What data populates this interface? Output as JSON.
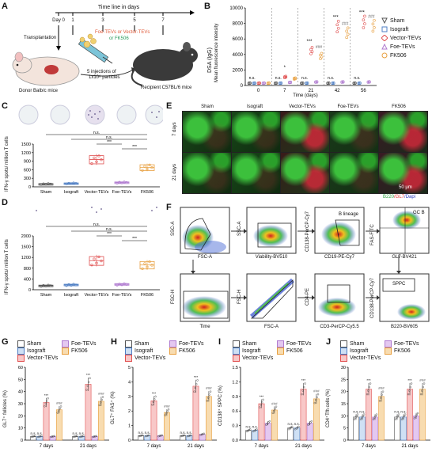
{
  "panels": {
    "A": "A",
    "B": "B",
    "C": "C",
    "D": "D",
    "E": "E",
    "F": "F",
    "G": "G",
    "H": "H",
    "I": "I",
    "J": "J"
  },
  "panelA": {
    "timeline_title": "Time line in days",
    "ticks": [
      "Day 0",
      "1",
      "3",
      "5",
      "7"
    ],
    "transplantation": "Transplantation",
    "treatment": "Foe-TEVs or Vector-TEVs",
    "treatment2": "or FK506",
    "injections": "5 injections of",
    "injections2": "1x10⁸ particles",
    "donor": "Donor Balb/c mice",
    "recipient": "Recipient C57BL/6 mice"
  },
  "panelB": {
    "ylabel": "DSA (IgG)",
    "ylabel2": "Mean fluorescence intensity",
    "xlabel": "Time (days)",
    "yticks": [
      "0",
      "2000",
      "4000",
      "6000",
      "8000",
      "10000"
    ],
    "groups": [
      "0",
      "7",
      "21",
      "42",
      "56"
    ],
    "legend": [
      "Sham",
      "Isograft",
      "Vector-TEVs",
      "Foe-TEVs",
      "FK506"
    ],
    "ns": "n.s.",
    "star1": "*",
    "star3": "***",
    "hash": "###"
  },
  "panelC": {
    "ylabel": "IFN-γ spots/ million T cells",
    "yticks": [
      "0",
      "300",
      "600",
      "900",
      "1200",
      "1500"
    ],
    "categories": [
      "Sham",
      "Isograft",
      "Vector-TEVs",
      "Foe-TEVs",
      "FK506"
    ],
    "ns": "n.s.",
    "star3": "***"
  },
  "panelD": {
    "ylabel": "IFN-γ spots/ million T cells",
    "yticks": [
      "0",
      "400",
      "800",
      "1200",
      "1600",
      "2000"
    ],
    "categories": [
      "Sham",
      "Isograft",
      "Vector-TEVs",
      "Foe-TEVs",
      "FK506"
    ],
    "ns": "n.s.",
    "star3": "***"
  },
  "panelE": {
    "columns": [
      "Sham",
      "Isograft",
      "Vector-TEVs",
      "Foe-TEVs",
      "FK506"
    ],
    "rows": [
      "7 days",
      "21 days"
    ],
    "scalebar": "50 μm",
    "stain_b220": "B220",
    "stain_gl7": "/GL7",
    "stain_dapi": "/Dapi"
  },
  "panelF": {
    "labels": {
      "ssc_a": "SSC-A",
      "fsc_a": "FSC-A",
      "viability": "Viability-BV510",
      "cd138_percp": "CD138-PerCP-Cy7",
      "cd19": "CD19-PE-Cy7",
      "b_lineage": "B lineage",
      "fas": "FAS-FITC",
      "gl7": "GL7-BV421",
      "gcb": "GC B",
      "fsc_h": "FSC-H",
      "time": "Time",
      "cd4_pe": "CD4-PE",
      "cd3": "CD3-PerCP-Cy5.5",
      "cd138_b": "CD138-PerCP-Cy7",
      "sppc": "SPPC",
      "b220": "B220-BV605"
    }
  },
  "panelG": {
    "ylabel": "GL7⁺ follicles (%)",
    "yticks": [
      "0",
      "10",
      "20",
      "30",
      "40",
      "50",
      "60"
    ],
    "ymax": 60,
    "groups": [
      "7 days",
      "21 days"
    ],
    "legend": [
      "Sham",
      "Foe-TEVs",
      "Isograft",
      "FK506",
      "Vector-TEVs"
    ],
    "values": [
      [
        3,
        3,
        31,
        3,
        25
      ],
      [
        3,
        3,
        46,
        3,
        32
      ]
    ]
  },
  "panelH": {
    "ylabel": "GL7⁺ FAS⁺ (%)",
    "yticks": [
      "0",
      "1",
      "2",
      "3",
      "4",
      "5"
    ],
    "ymax": 5,
    "groups": [
      "7 days",
      "21 days"
    ],
    "legend": [
      "Sham",
      "Foe-TEVs",
      "Isograft",
      "FK506",
      "Vector-TEVs"
    ],
    "values": [
      [
        0.3,
        0.3,
        2.7,
        0.3,
        1.9
      ],
      [
        0.3,
        0.3,
        3.7,
        0.4,
        3.0
      ]
    ]
  },
  "panelI": {
    "ylabel": "CD138⁺ SPPC (%)",
    "yticks": [
      "0.0",
      "0.3",
      "0.6",
      "0.9",
      "1.2",
      "1.5"
    ],
    "ymax": 1.5,
    "groups": [
      "7 days",
      "21 days"
    ],
    "legend": [
      "Sham",
      "Foe-TEVs",
      "Isograft",
      "FK506",
      "Vector-TEVs"
    ],
    "values": [
      [
        0.2,
        0.2,
        0.75,
        0.35,
        0.62
      ],
      [
        0.25,
        0.25,
        1.05,
        0.35,
        0.85
      ]
    ]
  },
  "panelJ": {
    "ylabel": "CD4⁺Tfh cells (%)",
    "yticks": [
      "0",
      "5",
      "10",
      "15",
      "20",
      "25",
      "30"
    ],
    "ymax": 30,
    "groups": [
      "7 days",
      "21 days"
    ],
    "legend": [
      "Sham",
      "Foe-TEVs",
      "Isograft",
      "FK506",
      "Vector-TEVs"
    ],
    "values": [
      [
        9.5,
        9.5,
        21,
        9.5,
        18
      ],
      [
        9.5,
        9.5,
        21,
        10,
        21
      ]
    ]
  },
  "sig": {
    "ns": "n.s.",
    "star3": "***",
    "hash3": "###"
  },
  "colors": {
    "sham": "#555555",
    "isograft": "#4f7fc4",
    "vector": "#e05050",
    "foe": "#b07bd0",
    "fk506": "#e8a040"
  }
}
